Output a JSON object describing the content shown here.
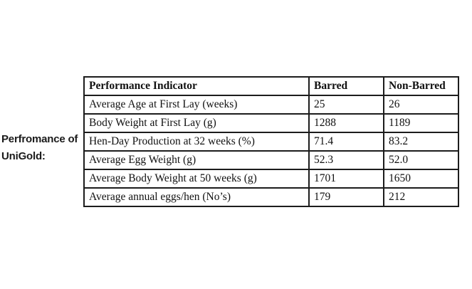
{
  "caption": {
    "line1": "Perfromance of",
    "line2": "UniGold:"
  },
  "table": {
    "columns": [
      "Performance Indicator",
      "Barred",
      "Non-Barred"
    ],
    "rows": [
      {
        "indicator": "Average Age at First Lay (weeks)",
        "barred": "25",
        "non_barred": "26"
      },
      {
        "indicator": "Body Weight at First Lay (g)",
        "barred": "1288",
        "non_barred": "1189"
      },
      {
        "indicator": "Hen-Day Production at 32 weeks (%)",
        "barred": "71.4",
        "non_barred": "83.2"
      },
      {
        "indicator": "Average Egg Weight (g)",
        "barred": "52.3",
        "non_barred": "52.0"
      },
      {
        "indicator": "Average Body Weight at 50 weeks (g)",
        "barred": "1701",
        "non_barred": "1650"
      },
      {
        "indicator": "Average annual eggs/hen (No’s)",
        "barred": "179",
        "non_barred": "212"
      }
    ],
    "colors": {
      "border": "#1c1c1c",
      "text": "#111111",
      "background": "#ffffff"
    }
  }
}
